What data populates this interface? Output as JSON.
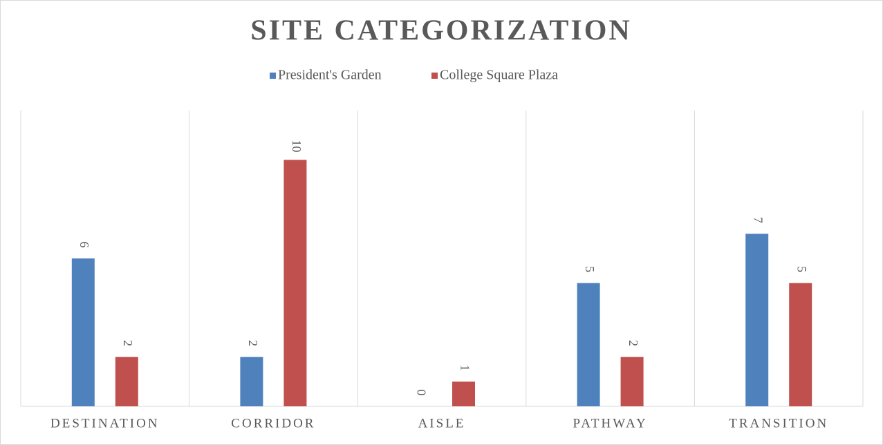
{
  "chart_data": {
    "type": "bar",
    "title": "SITE CATEGORIZATION",
    "categories": [
      "DESTINATION",
      "CORRIDOR",
      "AISLE",
      "PATHWAY",
      "TRANSITION"
    ],
    "series": [
      {
        "name": "President's Garden",
        "color": "#4f81bd",
        "values": [
          6,
          2,
          0,
          5,
          7
        ]
      },
      {
        "name": "College Square Plaza",
        "color": "#c0504d",
        "values": [
          2,
          10,
          1,
          2,
          5
        ]
      }
    ],
    "ylim": [
      0,
      12
    ],
    "legend": "top",
    "category_grid": true
  }
}
